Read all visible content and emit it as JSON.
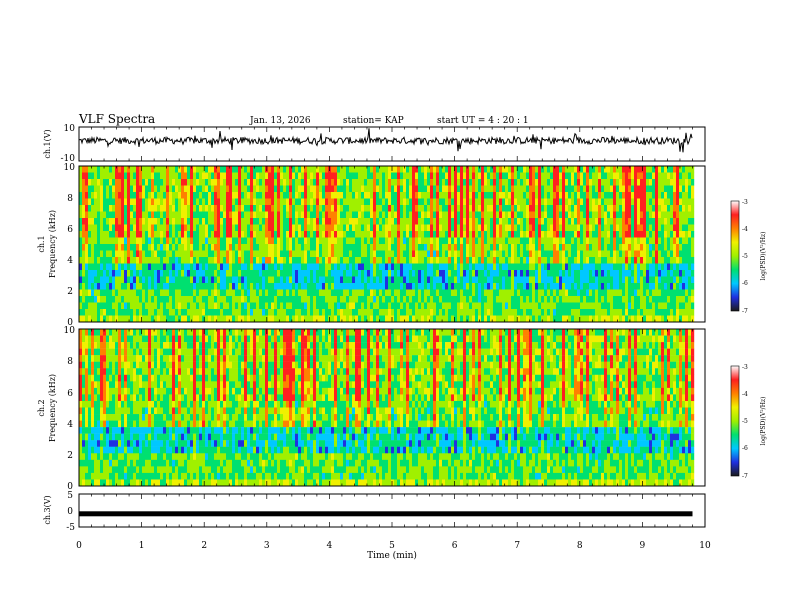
{
  "header": {
    "title": "VLF Spectra",
    "date": "Jan. 13, 2026",
    "station": "station= KAP",
    "start": "start  UT  =   4 : 20 : 1"
  },
  "chart_data": [
    {
      "type": "line",
      "name": "ch1-waveform",
      "ylabel": "ch.1(V)",
      "ylim": [
        -10,
        10
      ],
      "yticks": [
        "10",
        "-10"
      ],
      "xlim": [
        0,
        10
      ],
      "note": "noisy voltage trace, roughly centred near +2 V with spikes"
    },
    {
      "type": "heatmap",
      "name": "ch1-spectrogram",
      "ylabel": "ch.1",
      "ylabel2": "Frequency  (kHz)",
      "ylim": [
        0,
        10
      ],
      "yticks": [
        "0",
        "2",
        "4",
        "6",
        "8",
        "10"
      ],
      "xlim": [
        0,
        10
      ],
      "colorbar": {
        "label": "log(PSD)(V²/Hz)",
        "min": -7,
        "max": -3,
        "ticks": [
          "-3",
          "-4",
          "-5",
          "-6",
          "-7"
        ]
      }
    },
    {
      "type": "heatmap",
      "name": "ch2-spectrogram",
      "ylabel": "ch.2",
      "ylabel2": "Frequency  (kHz)",
      "ylim": [
        0,
        10
      ],
      "yticks": [
        "0",
        "2",
        "4",
        "6",
        "8",
        "10"
      ],
      "xlim": [
        0,
        10
      ],
      "colorbar": {
        "label": "log(PSD)(V²/Hz)",
        "min": -7,
        "max": -3,
        "ticks": [
          "-3",
          "-4",
          "-5",
          "-6",
          "-7"
        ]
      }
    },
    {
      "type": "line",
      "name": "ch3-waveform",
      "ylabel": "ch.3(V)",
      "ylim": [
        -5,
        5
      ],
      "yticks": [
        "5",
        "0",
        "-5"
      ],
      "xlim": [
        0,
        10
      ],
      "series_constant_value": -1,
      "note": "flat thick trace at about -1 V ending near 9.8 min"
    }
  ],
  "xaxis": {
    "label": "Time  (min)",
    "ticks": [
      "0",
      "1",
      "2",
      "3",
      "4",
      "5",
      "6",
      "7",
      "8",
      "9",
      "10"
    ],
    "data_end": 9.8
  },
  "colors": {
    "scale": [
      "#1a1a1a",
      "#2030e0",
      "#00c8ff",
      "#00e070",
      "#a0f000",
      "#f0f000",
      "#ff8000",
      "#ff2020",
      "#ffffff"
    ]
  }
}
